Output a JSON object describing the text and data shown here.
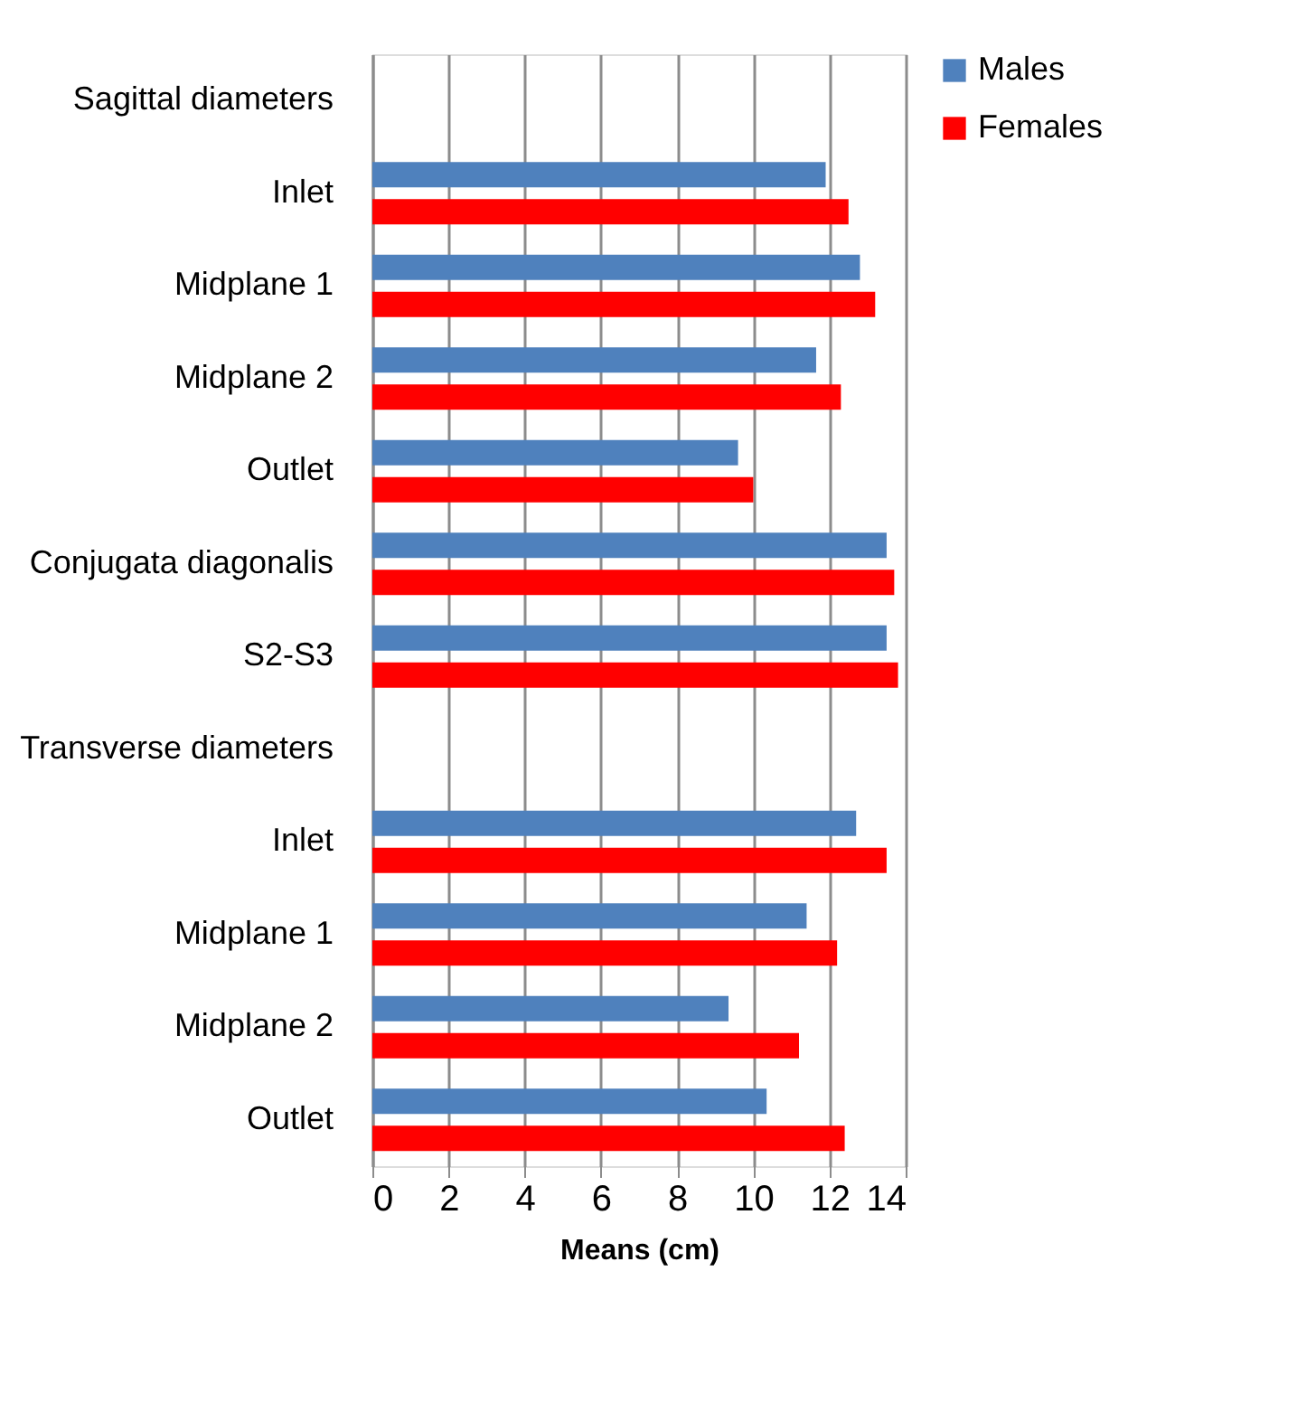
{
  "chart_data": {
    "type": "bar",
    "orientation": "horizontal",
    "xlabel": "Means (cm)",
    "categories": [
      "Sagittal diameters",
      "Inlet",
      "Midplane 1",
      "Midplane 2",
      "Outlet",
      "Conjugata diagonalis",
      "S2-S3",
      "Transverse diameters",
      "Inlet",
      "Midplane 1",
      "Midplane 2",
      "Outlet"
    ],
    "series": [
      {
        "name": "Males",
        "color": "#4f81bd",
        "values": [
          null,
          11.9,
          12.8,
          11.65,
          9.6,
          13.5,
          13.5,
          null,
          12.7,
          11.4,
          9.35,
          10.35
        ]
      },
      {
        "name": "Females",
        "color": "#ff0000",
        "values": [
          null,
          12.5,
          13.2,
          12.3,
          10.0,
          13.7,
          13.8,
          null,
          13.5,
          12.2,
          11.2,
          12.4
        ]
      }
    ],
    "xlim": [
      0,
      14
    ],
    "xticks": [
      0,
      2,
      4,
      6,
      8,
      10,
      12,
      14
    ],
    "grid": "x",
    "legend": "right"
  }
}
